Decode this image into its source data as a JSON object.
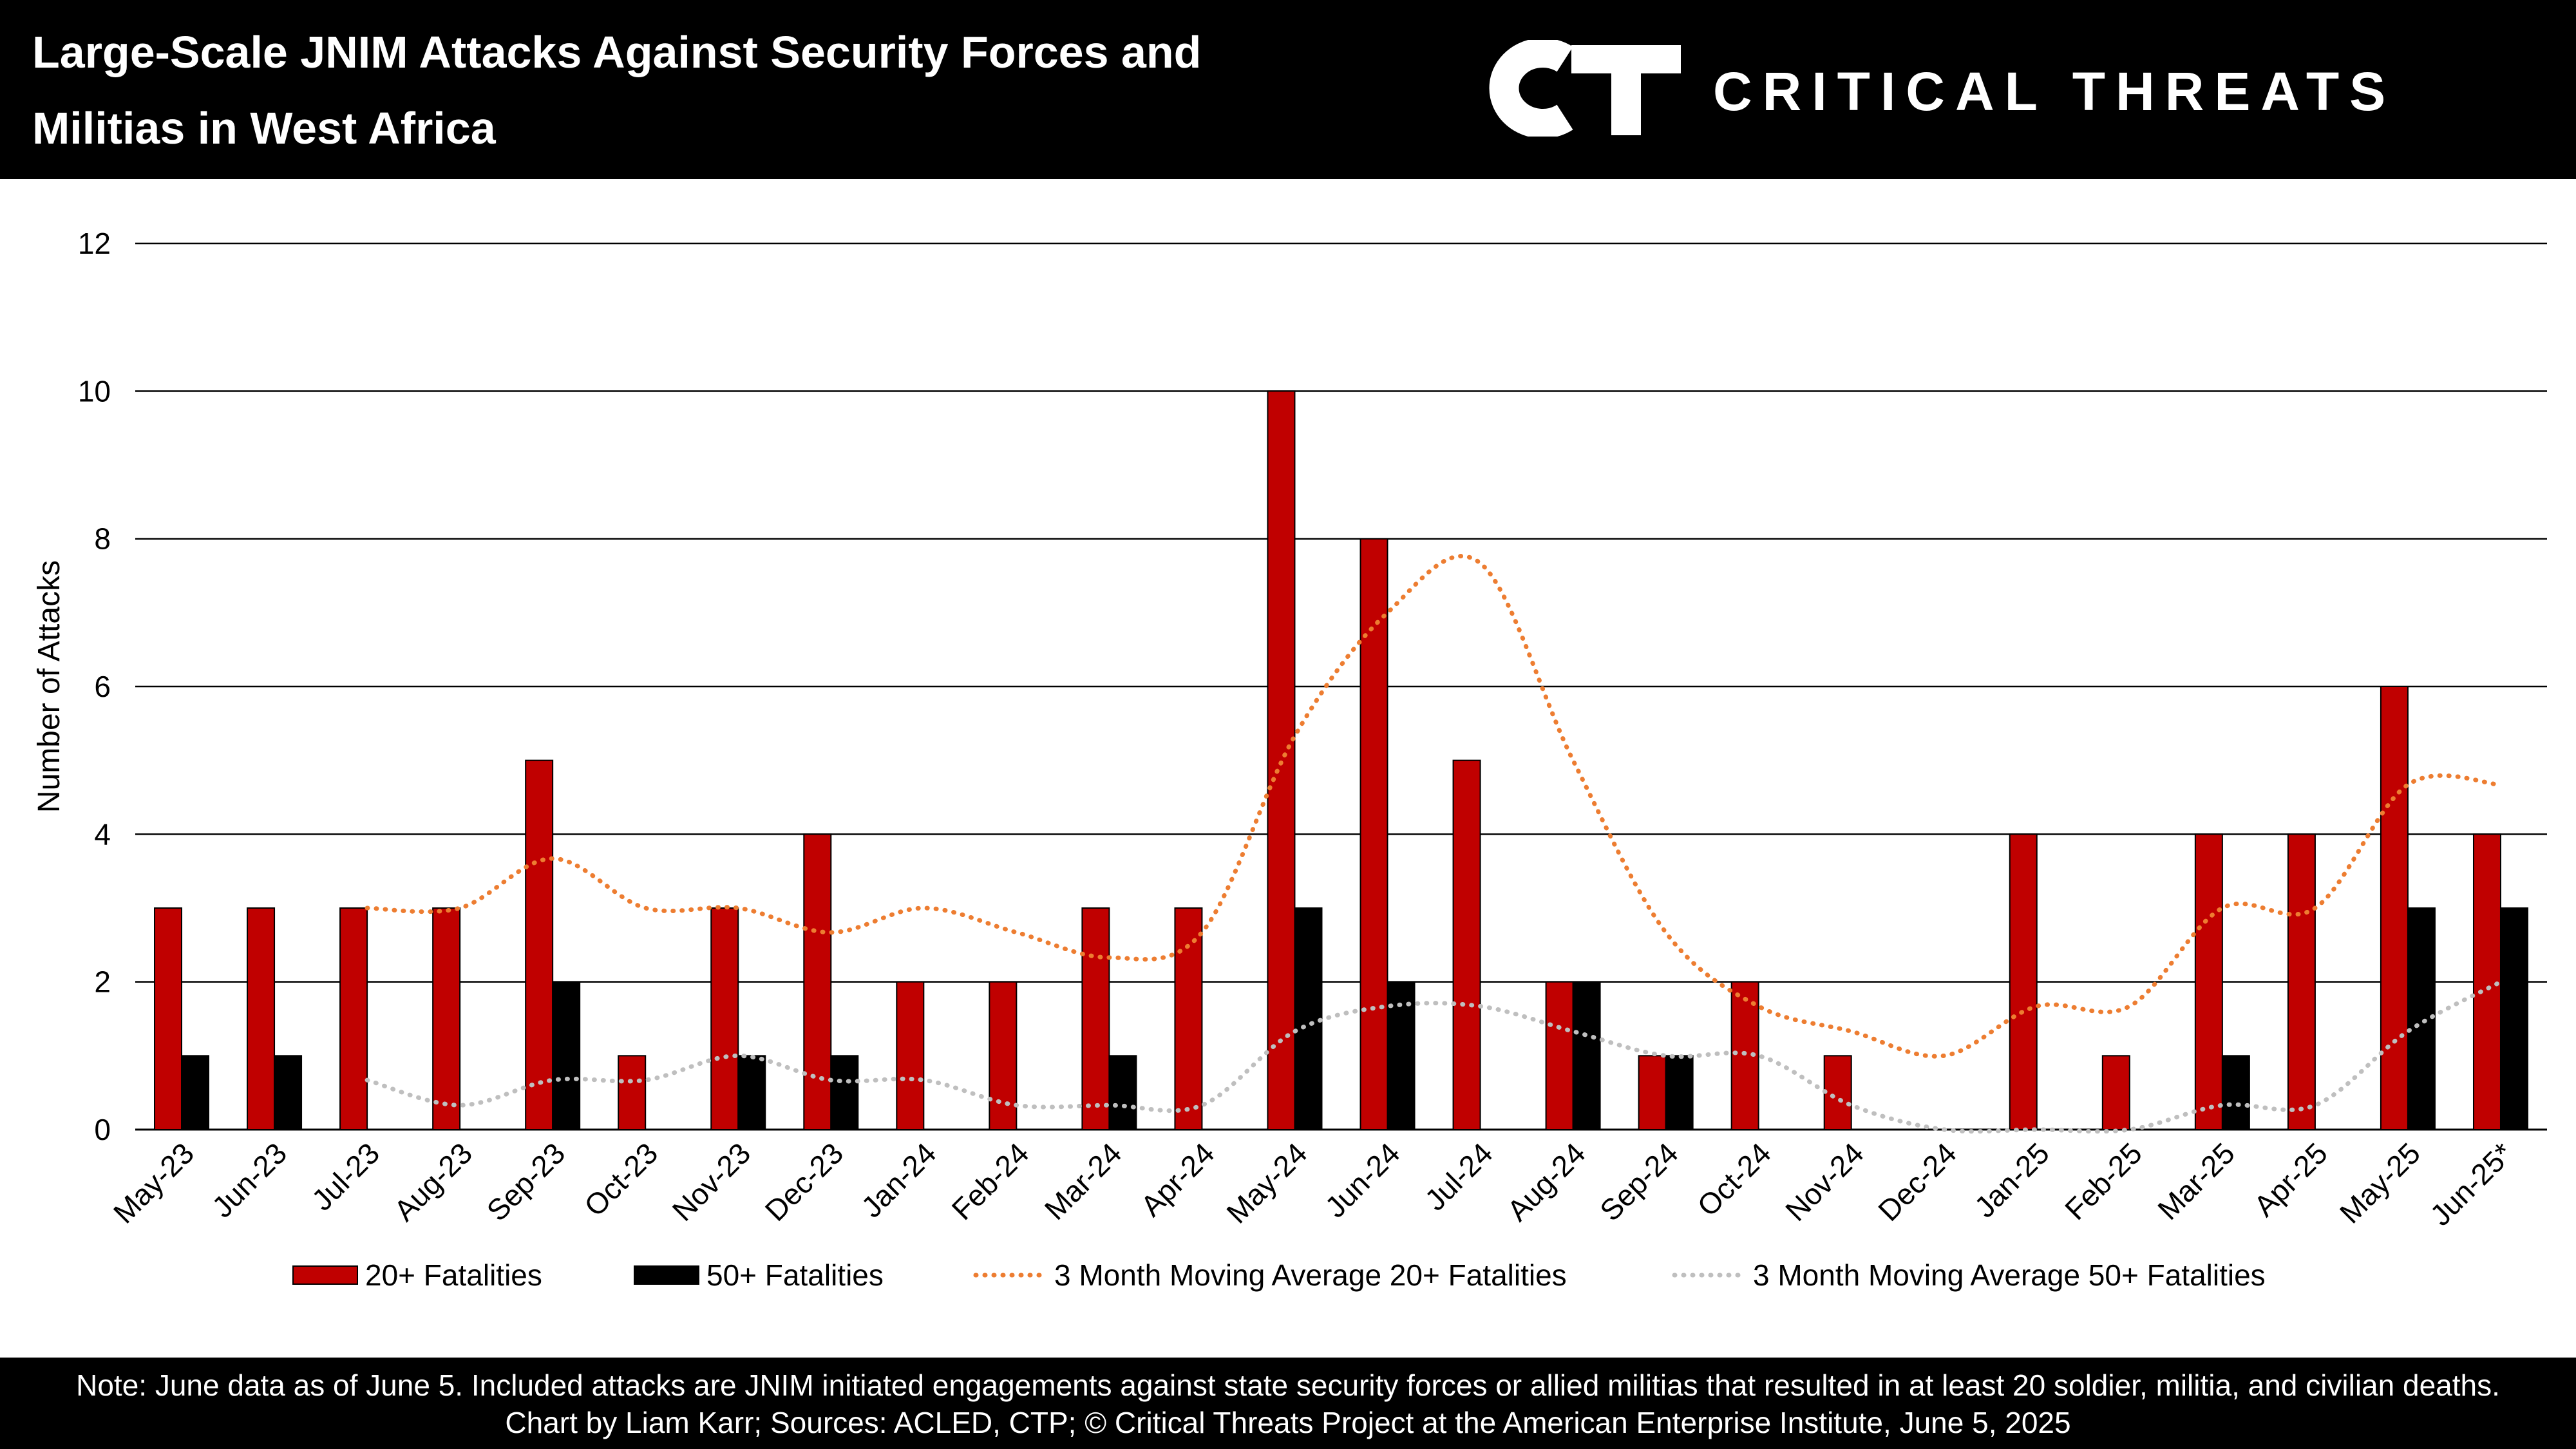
{
  "header": {
    "title_line1": "Large-Scale JNIM Attacks Against Security Forces and",
    "title_line2": "Militias in West Africa",
    "logo_mark": "CT",
    "logo_text": "CRITICAL THREATS"
  },
  "footer": {
    "line1": "Note: June data as of June 5. Included attacks are JNIM initiated engagements against state security forces or allied militias that resulted in at least 20 soldier, militia, and civilian deaths.",
    "line2": "Chart by Liam Karr; Sources: ACLED, CTP; © Critical Threats Project at the American Enterprise Institute, June 5, 2025"
  },
  "chart_data": {
    "type": "bar",
    "ylabel": "Number of Attacks",
    "xlabel": "",
    "ylim": [
      0,
      12
    ],
    "yticks": [
      0,
      2,
      4,
      6,
      8,
      10,
      12
    ],
    "grid": true,
    "legend_position": "bottom",
    "categories": [
      "May-23",
      "Jun-23",
      "Jul-23",
      "Aug-23",
      "Sep-23",
      "Oct-23",
      "Nov-23",
      "Dec-23",
      "Jan-24",
      "Feb-24",
      "Mar-24",
      "Apr-24",
      "May-24",
      "Jun-24",
      "Jul-24",
      "Aug-24",
      "Sep-24",
      "Oct-24",
      "Nov-24",
      "Dec-24",
      "Jan-25",
      "Feb-25",
      "Mar-25",
      "Apr-25",
      "May-25",
      "Jun-25*"
    ],
    "series": [
      {
        "name": "20+ Fatalities",
        "kind": "bar",
        "color": "#c00000",
        "values": [
          3,
          3,
          3,
          3,
          5,
          1,
          3,
          4,
          2,
          2,
          3,
          3,
          10,
          8,
          5,
          2,
          1,
          2,
          1,
          0,
          4,
          1,
          4,
          4,
          6,
          4
        ]
      },
      {
        "name": "50+ Fatalities",
        "kind": "bar",
        "color": "#000000",
        "values": [
          1,
          1,
          0,
          0,
          2,
          0,
          1,
          1,
          0,
          0,
          1,
          0,
          3,
          2,
          0,
          2,
          1,
          0,
          0,
          0,
          0,
          0,
          1,
          0,
          3,
          3
        ]
      },
      {
        "name": "3 Month Moving Average 20+ Fatalities",
        "kind": "line",
        "color": "#ed7d31",
        "values": [
          null,
          null,
          3,
          3,
          3.67,
          3,
          3,
          2.67,
          3,
          2.67,
          2.33,
          2.67,
          5.33,
          7,
          7.67,
          5,
          2.67,
          1.67,
          1.33,
          1,
          1.67,
          1.67,
          3,
          3,
          4.67,
          4.67
        ]
      },
      {
        "name": "3 Month Moving Average 50+ Fatalities",
        "kind": "line",
        "color": "#bfbfbf",
        "values": [
          null,
          null,
          0.67,
          0.33,
          0.67,
          0.67,
          1,
          0.67,
          0.67,
          0.33,
          0.33,
          0.33,
          1.33,
          1.67,
          1.67,
          1.33,
          1,
          1,
          0.33,
          0,
          0,
          0,
          0.33,
          0.33,
          1.33,
          2
        ]
      }
    ]
  }
}
